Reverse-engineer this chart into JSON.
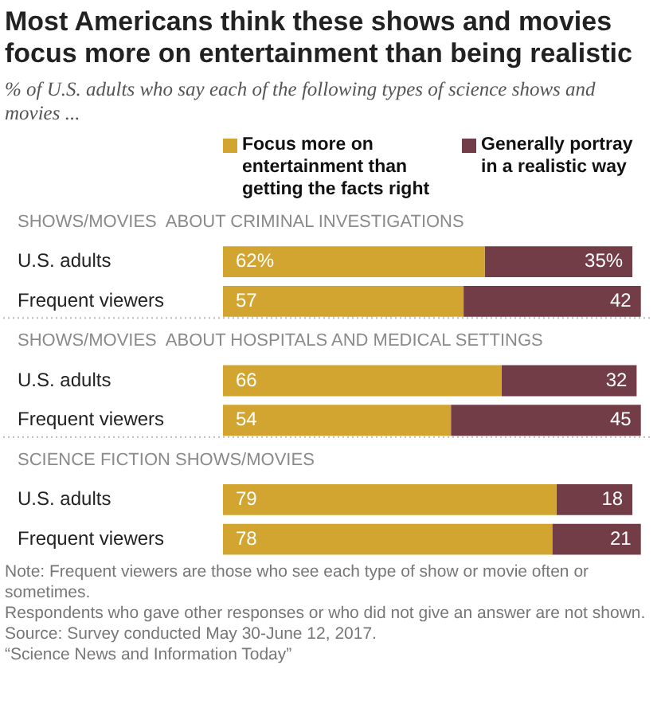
{
  "chart_data": {
    "type": "bar",
    "orientation": "horizontal",
    "stacked": true,
    "legend": "top",
    "title": "Most Americans think these shows and movies focus more on entertainment than being realistic",
    "subtitle": "% of U.S. adults who say each of the following types of science shows and movies ...",
    "categories": [
      "SHOWS/MOVIES  ABOUT CRIMINAL INVESTIGATIONS",
      "U.S. adults",
      "Frequent viewers",
      "SHOWS/MOVIES  ABOUT HOSPITALS AND MEDICAL SETTINGS",
      "U.S. adults",
      "Frequent viewers",
      "SCIENCE FICTION SHOWS/MOVIES",
      "U.S. adults",
      "Frequent viewers"
    ],
    "series": [
      {
        "name": "Focus more on entertainment than getting the facts right",
        "color": "#d1a530",
        "values": [
          null,
          62,
          57,
          null,
          66,
          54,
          null,
          79,
          78
        ],
        "value_labels": [
          null,
          "62%",
          "57",
          null,
          "66",
          "54",
          null,
          "79",
          "78"
        ]
      },
      {
        "name": "Generally portray in a realistic way",
        "color": "#733d47",
        "values": [
          null,
          35,
          42,
          null,
          32,
          45,
          null,
          18,
          21
        ],
        "value_labels": [
          null,
          "35%",
          "42",
          null,
          "32",
          "45",
          null,
          "18",
          "21"
        ]
      }
    ],
    "annotations": [
      "Note: Frequent viewers are those who see each type of show or movie often or sometimes.",
      "Respondents who gave other responses or who did not give an answer are not shown.",
      "Source: Survey conducted May 30-June 12, 2017.",
      "“Science News and Information Today”"
    ]
  }
}
